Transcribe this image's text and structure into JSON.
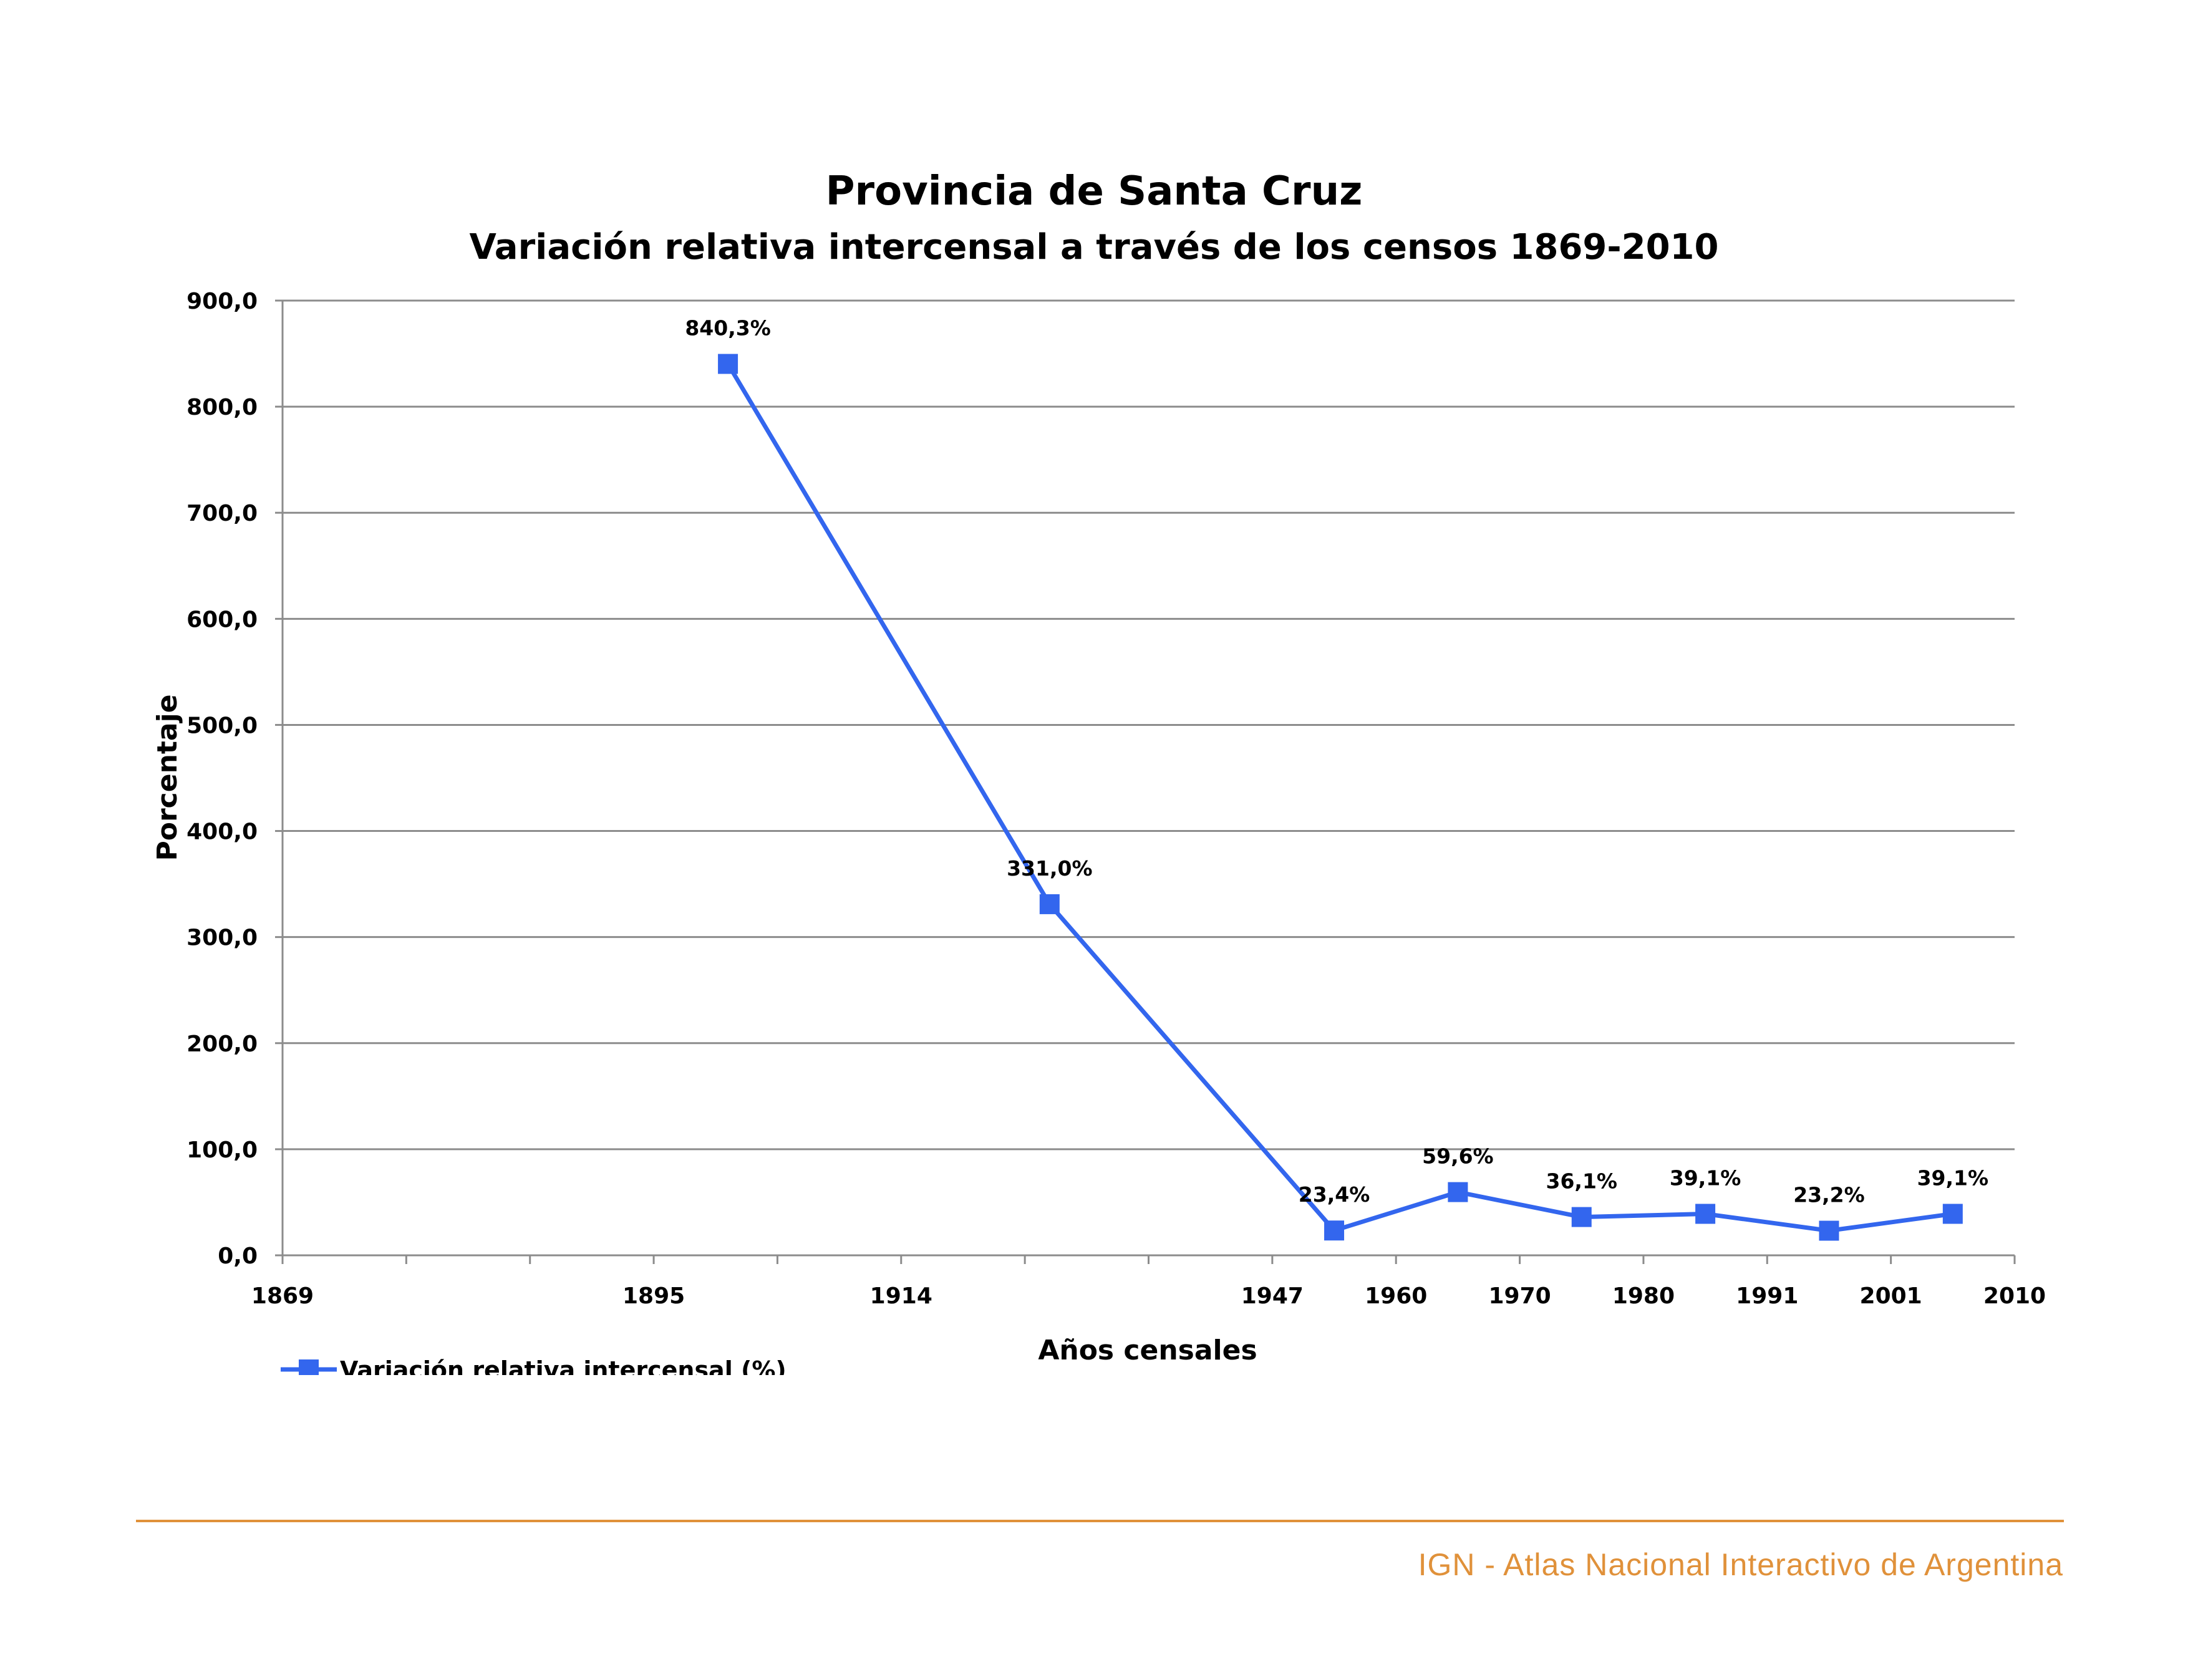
{
  "colors": {
    "series": "#3366ee",
    "footer": "#e0913a",
    "grid": "#8c8c8c"
  },
  "chart_data": {
    "type": "line",
    "title": "Provincia de Santa Cruz",
    "subtitle": "Variación relativa intercensal a través de los censos 1869-2010",
    "xlabel": "Años censales",
    "ylabel": "Porcentaje",
    "ylim": [
      0,
      900
    ],
    "y_ticks": [
      "0,0",
      "100,0",
      "200,0",
      "300,0",
      "400,0",
      "500,0",
      "600,0",
      "700,0",
      "800,0",
      "900,0"
    ],
    "x_ticks": [
      "1869",
      "1895",
      "1914",
      "1947",
      "1960",
      "1970",
      "1980",
      "1991",
      "2001",
      "2010"
    ],
    "grid": true,
    "legend_position": "bottom-left",
    "series": [
      {
        "name": "Variación relativa intercensal (%)",
        "points": [
          {
            "x": "1895-1914",
            "y": 840.3,
            "label": "840,3%"
          },
          {
            "x": "1914-1947",
            "y": 331.0,
            "label": "331,0%"
          },
          {
            "x": "1947-1960",
            "y": 23.4,
            "label": "23,4%"
          },
          {
            "x": "1960-1970",
            "y": 59.6,
            "label": "59,6%"
          },
          {
            "x": "1970-1980",
            "y": 36.1,
            "label": "36,1%"
          },
          {
            "x": "1980-1991",
            "y": 39.1,
            "label": "39,1%"
          },
          {
            "x": "1991-2001",
            "y": 23.2,
            "label": "23,2%"
          },
          {
            "x": "2001-2010",
            "y": 39.1,
            "label": "39,1%"
          }
        ]
      }
    ]
  },
  "footer": {
    "credit": "IGN - Atlas Nacional Interactivo de Argentina"
  }
}
